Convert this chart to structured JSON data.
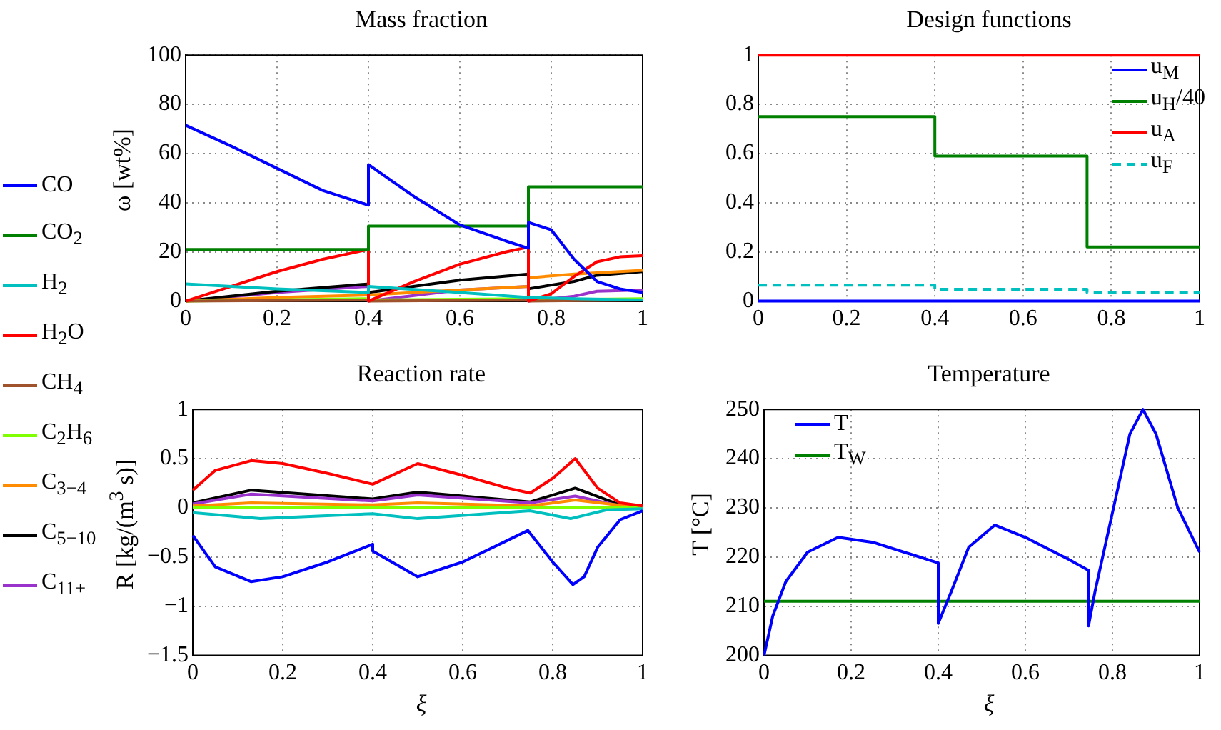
{
  "chart_data": [
    {
      "type": "line",
      "title": "Mass fraction",
      "ylabel": "ω [wt%]",
      "xlim": [
        0,
        1
      ],
      "xticks": [
        0,
        0.2,
        0.4,
        0.6,
        0.8,
        1
      ],
      "ylim": [
        0,
        100
      ],
      "yticks": [
        0,
        20,
        40,
        60,
        80,
        100
      ],
      "grid": true,
      "legend": "left",
      "series": [
        {
          "name": "CO",
          "color": "#0000ff",
          "x": [
            0,
            0.1,
            0.2,
            0.3,
            0.4,
            0.4,
            0.5,
            0.6,
            0.7,
            0.75,
            0.75,
            0.8,
            0.85,
            0.9,
            0.95,
            1
          ],
          "values": [
            71.5,
            63,
            54,
            45,
            39,
            55.5,
            42.5,
            31,
            24.5,
            21.5,
            32,
            29,
            17,
            8,
            5,
            3.5
          ]
        },
        {
          "name": "CO$_{2}$",
          "color": "#008000",
          "x": [
            0,
            0.4,
            0.4,
            0.75,
            0.75,
            1
          ],
          "values": [
            21,
            21,
            30.5,
            30.5,
            46.5,
            46.5
          ]
        },
        {
          "name": "H$_{2}$",
          "color": "#00bfbf",
          "x": [
            0,
            0.2,
            0.4,
            0.4,
            0.6,
            0.75,
            0.75,
            0.85,
            1
          ],
          "values": [
            7,
            5,
            3.5,
            6,
            3.5,
            1.5,
            1.5,
            1,
            0.5
          ]
        },
        {
          "name": "H$_{2}$O",
          "color": "#ff0000",
          "x": [
            0,
            0.1,
            0.2,
            0.3,
            0.4,
            0.4,
            0.5,
            0.6,
            0.7,
            0.75,
            0.75,
            0.8,
            0.85,
            0.9,
            0.95,
            1
          ],
          "values": [
            0,
            6,
            12,
            17,
            21,
            0,
            8,
            15,
            20,
            22,
            0,
            3,
            10,
            16,
            18,
            18.5
          ]
        },
        {
          "name": "CH$_{4}$",
          "color": "#a0522d",
          "x": [
            0,
            0.4,
            0.4,
            0.75,
            0.75,
            1
          ],
          "values": [
            0,
            0.5,
            0,
            0.5,
            0,
            0.5
          ]
        },
        {
          "name": "C$_{2}$H$_{6}$",
          "color": "#80ff00",
          "x": [
            0,
            0.4,
            0.4,
            0.75,
            0.75,
            1
          ],
          "values": [
            0,
            1,
            0.5,
            1,
            0.5,
            1
          ]
        },
        {
          "name": "C$_{3−4}$",
          "color": "#ff8c00",
          "x": [
            0,
            0.2,
            0.4,
            0.4,
            0.6,
            0.75,
            0.75,
            0.85,
            1
          ],
          "values": [
            0,
            1.5,
            2.5,
            2.5,
            4.5,
            6,
            9.5,
            11,
            12.5
          ]
        },
        {
          "name": "C$_{5−10}$",
          "color": "#000000",
          "x": [
            0,
            0.2,
            0.4,
            0.4,
            0.6,
            0.75,
            0.75,
            0.85,
            0.9,
            1
          ],
          "values": [
            0,
            4,
            7,
            3.5,
            8.5,
            11,
            5,
            8,
            10.5,
            12
          ]
        },
        {
          "name": "C$_{11+}$",
          "color": "#9933cc",
          "x": [
            0,
            0.2,
            0.4,
            0.4,
            0.6,
            0.75,
            0.75,
            0.85,
            0.9,
            1
          ],
          "values": [
            0,
            3.5,
            6,
            0,
            4.5,
            6,
            0,
            2,
            4,
            4.5
          ]
        }
      ]
    },
    {
      "type": "line",
      "title": "Design functions",
      "xlim": [
        0,
        1
      ],
      "xticks": [
        0,
        0.2,
        0.4,
        0.6,
        0.8,
        1
      ],
      "ylim": [
        0,
        1
      ],
      "yticks": [
        0,
        0.2,
        0.4,
        0.6,
        0.8,
        1
      ],
      "grid": true,
      "legend": "top right",
      "series": [
        {
          "name": "u$_{M}$",
          "color": "#0000ff",
          "x": [
            0,
            1
          ],
          "values": [
            0,
            0
          ]
        },
        {
          "name": "u$_{H}$/40",
          "color": "#008000",
          "x": [
            0,
            0.4,
            0.4,
            0.745,
            0.745,
            1
          ],
          "values": [
            0.75,
            0.75,
            0.59,
            0.59,
            0.22,
            0.22
          ]
        },
        {
          "name": "u$_{A}$",
          "color": "#ff0000",
          "x": [
            0,
            1
          ],
          "values": [
            1,
            1
          ]
        },
        {
          "name": "u$_{F}$",
          "color": "#00bfbf",
          "line_style": "dashed",
          "x": [
            0,
            0.4,
            0.4,
            0.745,
            0.745,
            1
          ],
          "values": [
            0.065,
            0.065,
            0.048,
            0.048,
            0.035,
            0.035
          ]
        }
      ]
    },
    {
      "type": "line",
      "title": "Reaction rate",
      "ylabel": "R [kg/(m$^{3}$ s)]",
      "xlabel": "ξ",
      "xlim": [
        0,
        1
      ],
      "xticks": [
        0,
        0.2,
        0.4,
        0.6,
        0.8,
        1
      ],
      "ylim": [
        -1.5,
        1
      ],
      "yticks": [
        -1.5,
        -1,
        -0.5,
        0,
        0.5,
        1
      ],
      "grid": true,
      "series": [
        {
          "color": "#0000ff",
          "x": [
            0,
            0.05,
            0.13,
            0.2,
            0.3,
            0.4,
            0.4,
            0.5,
            0.6,
            0.7,
            0.745,
            0.8,
            0.845,
            0.87,
            0.9,
            0.95,
            1
          ],
          "values": [
            -0.28,
            -0.6,
            -0.75,
            -0.7,
            -0.55,
            -0.37,
            -0.44,
            -0.7,
            -0.55,
            -0.33,
            -0.23,
            -0.55,
            -0.78,
            -0.7,
            -0.4,
            -0.12,
            -0.03
          ]
        },
        {
          "color": "#00bfbf",
          "x": [
            0,
            0.15,
            0.4,
            0.5,
            0.75,
            0.84,
            0.92,
            1
          ],
          "values": [
            -0.05,
            -0.11,
            -0.06,
            -0.11,
            -0.03,
            -0.11,
            -0.02,
            -0.01
          ]
        },
        {
          "color": "#ff0000",
          "x": [
            0,
            0.05,
            0.13,
            0.2,
            0.3,
            0.4,
            0.5,
            0.6,
            0.7,
            0.75,
            0.8,
            0.85,
            0.9,
            0.95,
            1
          ],
          "values": [
            0.18,
            0.38,
            0.48,
            0.45,
            0.35,
            0.24,
            0.45,
            0.33,
            0.2,
            0.15,
            0.3,
            0.5,
            0.2,
            0.05,
            0.02
          ]
        },
        {
          "color": "#80ff00",
          "x": [
            0,
            1
          ],
          "values": [
            0,
            0
          ]
        },
        {
          "color": "#ff8c00",
          "x": [
            0,
            0.13,
            0.4,
            0.5,
            0.75,
            0.85,
            1
          ],
          "values": [
            0.02,
            0.05,
            0.03,
            0.05,
            0.02,
            0.08,
            0
          ]
        },
        {
          "color": "#9933cc",
          "x": [
            0,
            0.13,
            0.4,
            0.5,
            0.75,
            0.85,
            0.95,
            1
          ],
          "values": [
            0.04,
            0.14,
            0.07,
            0.13,
            0.05,
            0.12,
            0.02,
            0
          ]
        },
        {
          "color": "#000000",
          "x": [
            0,
            0.13,
            0.4,
            0.5,
            0.75,
            0.85,
            0.95,
            1
          ],
          "values": [
            0.05,
            0.18,
            0.09,
            0.16,
            0.06,
            0.2,
            0.03,
            0.01
          ]
        }
      ]
    },
    {
      "type": "line",
      "title": "Temperature",
      "ylabel": "T [°C]",
      "xlabel": "ξ",
      "xlim": [
        0,
        1
      ],
      "xticks": [
        0,
        0.2,
        0.4,
        0.6,
        0.8,
        1
      ],
      "ylim": [
        200,
        250
      ],
      "yticks": [
        200,
        210,
        220,
        230,
        240,
        250
      ],
      "grid": true,
      "legend": "top left",
      "series": [
        {
          "name": "T",
          "color": "#0000ff",
          "x": [
            0,
            0.02,
            0.05,
            0.1,
            0.17,
            0.25,
            0.4,
            0.4,
            0.43,
            0.47,
            0.53,
            0.6,
            0.7,
            0.745,
            0.745,
            0.76,
            0.8,
            0.84,
            0.87,
            0.9,
            0.95,
            1
          ],
          "values": [
            200,
            208,
            215,
            221,
            224,
            223,
            218.8,
            206.5,
            213,
            222,
            226.5,
            224,
            219.5,
            217.3,
            206,
            213,
            229,
            245,
            250,
            245,
            230,
            221
          ]
        },
        {
          "name": "T$_{W}$",
          "color": "#008000",
          "x": [
            0,
            1
          ],
          "values": [
            211,
            211
          ]
        }
      ]
    }
  ]
}
